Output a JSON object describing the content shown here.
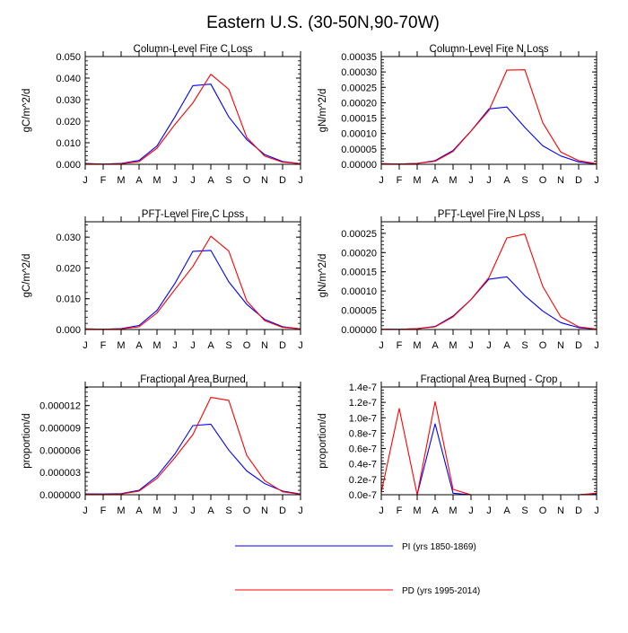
{
  "figure": {
    "title": "Eastern U.S. (30-50N,90-70W)"
  },
  "legend": [
    {
      "name": "PI (yrs 1850-1869)",
      "color": "#0000ff"
    },
    {
      "name": "PD (yrs 1995-2014)",
      "color": "#ff0000"
    }
  ],
  "chart_data": [
    {
      "type": "line",
      "title": "Column-Level Fire C Loss",
      "ylabel": "gC/m^2/d",
      "xlabel": "",
      "categories": [
        "J",
        "F",
        "M",
        "A",
        "M",
        "J",
        "J",
        "A",
        "S",
        "O",
        "N",
        "D",
        "J"
      ],
      "ylim": [
        0,
        0.05
      ],
      "yticks": [
        "0.000",
        "0.010",
        "0.020",
        "0.030",
        "0.040",
        "0.050"
      ],
      "series": [
        {
          "name": "PI (yrs 1850-1869)",
          "color": "#0000ff",
          "values": [
            0.0004,
            0.0001,
            0.0004,
            0.0018,
            0.0085,
            0.022,
            0.0365,
            0.0372,
            0.022,
            0.0115,
            0.0045,
            0.0013,
            0.0003
          ]
        },
        {
          "name": "PD (yrs 1995-2014)",
          "color": "#ff0000",
          "values": [
            0.0003,
            0.0001,
            0.0003,
            0.0012,
            0.0075,
            0.0185,
            0.0285,
            0.0418,
            0.0348,
            0.0125,
            0.0038,
            0.001,
            0.0003
          ]
        }
      ]
    },
    {
      "type": "line",
      "title": "Column-Level Fire N Loss",
      "ylabel": "gN/m^2/d",
      "xlabel": "",
      "categories": [
        "J",
        "F",
        "M",
        "A",
        "M",
        "J",
        "J",
        "A",
        "S",
        "O",
        "N",
        "D",
        "J"
      ],
      "ylim": [
        0,
        0.00035
      ],
      "yticks": [
        "0.00000",
        "0.00005",
        "0.00010",
        "0.00015",
        "0.00020",
        "0.00025",
        "0.00030",
        "0.00035"
      ],
      "series": [
        {
          "name": "PI (yrs 1850-1869)",
          "color": "#0000ff",
          "values": [
            2e-06,
            1e-06,
            3e-06,
            1.2e-05,
            4.5e-05,
            0.000108,
            0.00018,
            0.000186,
            0.00012,
            6e-05,
            2.7e-05,
            8e-06,
            1e-06
          ]
        },
        {
          "name": "PD (yrs 1995-2014)",
          "color": "#ff0000",
          "values": [
            2e-06,
            1e-06,
            3e-06,
            1e-05,
            4.2e-05,
            0.000108,
            0.000175,
            0.000306,
            0.000307,
            0.000135,
            4e-05,
            1.2e-05,
            2e-06
          ]
        }
      ]
    },
    {
      "type": "line",
      "title": "PFT-Level Fire C Loss",
      "ylabel": "gC/m^2/d",
      "xlabel": "",
      "categories": [
        "J",
        "F",
        "M",
        "A",
        "M",
        "J",
        "J",
        "A",
        "S",
        "O",
        "N",
        "D",
        "J"
      ],
      "ylim": [
        0,
        0.035
      ],
      "yticks": [
        "0.000",
        "0.010",
        "0.020",
        "0.030"
      ],
      "series": [
        {
          "name": "PI (yrs 1850-1869)",
          "color": "#0000ff",
          "values": [
            0.0002,
            0.0001,
            0.0003,
            0.0013,
            0.0062,
            0.015,
            0.0254,
            0.0257,
            0.0155,
            0.0082,
            0.0033,
            0.0009,
            0.0002
          ]
        },
        {
          "name": "PD (yrs 1995-2014)",
          "color": "#ff0000",
          "values": [
            0.0002,
            0.0001,
            0.0002,
            0.0009,
            0.0054,
            0.013,
            0.0205,
            0.0303,
            0.0255,
            0.0093,
            0.0029,
            0.0007,
            0.0002
          ]
        }
      ]
    },
    {
      "type": "line",
      "title": "PFT-Level Fire N Loss",
      "ylabel": "gN/m^2/d",
      "xlabel": "",
      "categories": [
        "J",
        "F",
        "M",
        "A",
        "M",
        "J",
        "J",
        "A",
        "S",
        "O",
        "N",
        "D",
        "J"
      ],
      "ylim": [
        0,
        0.00028
      ],
      "yticks": [
        "0.00000",
        "0.00005",
        "0.00010",
        "0.00015",
        "0.00020",
        "0.00025"
      ],
      "series": [
        {
          "name": "PI (yrs 1850-1869)",
          "color": "#0000ff",
          "values": [
            1e-06,
            5e-07,
            2e-06,
            8e-06,
            3.5e-05,
            7.8e-05,
            0.000131,
            0.000137,
            8.8e-05,
            4.8e-05,
            1.8e-05,
            5e-06,
            1e-06
          ]
        },
        {
          "name": "PD (yrs 1995-2014)",
          "color": "#ff0000",
          "values": [
            1e-06,
            5e-07,
            2e-06,
            7e-06,
            3.3e-05,
            7.8e-05,
            0.000135,
            0.000238,
            0.000248,
            0.000112,
            3.3e-05,
            7e-06,
            1e-06
          ]
        }
      ]
    },
    {
      "type": "line",
      "title": "Fractional Area Burned",
      "ylabel": "proportion/d",
      "xlabel": "",
      "categories": [
        "J",
        "F",
        "M",
        "A",
        "M",
        "J",
        "J",
        "A",
        "S",
        "O",
        "N",
        "D",
        "J"
      ],
      "ylim": [
        0,
        1.45e-05
      ],
      "yticks": [
        "0.000000",
        "0.000003",
        "0.000006",
        "0.000009",
        "0.000012"
      ],
      "series": [
        {
          "name": "PI (yrs 1850-1869)",
          "color": "#0000ff",
          "values": [
            1.2e-07,
            1e-07,
            1.5e-07,
            6e-07,
            2.5e-06,
            5.5e-06,
            9.3e-06,
            9.5e-06,
            6e-06,
            3.2e-06,
            1.5e-06,
            5e-07,
            1e-07
          ]
        },
        {
          "name": "PD (yrs 1995-2014)",
          "color": "#ff0000",
          "values": [
            8e-08,
            6e-08,
            1e-07,
            5e-07,
            2.2e-06,
            5e-06,
            8.1e-06,
            1.31e-05,
            1.27e-05,
            5.3e-06,
            1.9e-06,
            4e-07,
            5e-08
          ]
        }
      ]
    },
    {
      "type": "line",
      "title": "Fractional Area Burned - Crop",
      "ylabel": "proportion/d",
      "xlabel": "",
      "categories": [
        "J",
        "F",
        "M",
        "A",
        "M",
        "J",
        "J",
        "A",
        "S",
        "O",
        "N",
        "D",
        "J"
      ],
      "ylim": [
        0,
        1.4e-07
      ],
      "yticks": [
        "0.0e-7",
        "0.2e-7",
        "0.4e-7",
        "0.6e-7",
        "0.8e-7",
        "1.0e-7",
        "1.2e-7",
        "1.4e-7"
      ],
      "series": [
        {
          "name": "PI (yrs 1850-1869)",
          "color": "#0000ff",
          "values": [
            0,
            0,
            0,
            9.2e-08,
            2e-09,
            0,
            0,
            0,
            0,
            0,
            0,
            0,
            1e-09
          ]
        },
        {
          "name": "PD (yrs 1995-2014)",
          "color": "#ff0000",
          "values": [
            3e-09,
            1.12e-07,
            0,
            1.21e-07,
            7e-09,
            0,
            0,
            0,
            0,
            0,
            0,
            0,
            2e-09
          ]
        }
      ]
    }
  ]
}
